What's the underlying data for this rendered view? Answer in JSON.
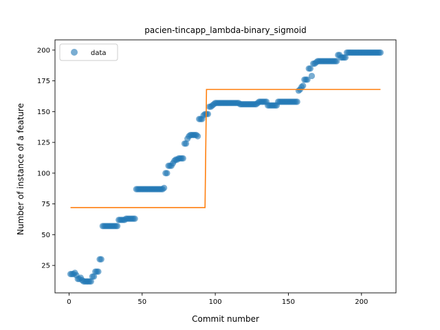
{
  "chart_data": {
    "type": "scatter",
    "title": "pacien-tincapp_lambda-binary_sigmoid",
    "xlabel": "Commit number",
    "ylabel": "Number of instance of a feature",
    "xlim": [
      -9.6,
      223.6
    ],
    "ylim": [
      2.7,
      208.3
    ],
    "xticks": [
      0,
      50,
      100,
      150,
      200
    ],
    "yticks": [
      25,
      50,
      75,
      100,
      125,
      150,
      175,
      200
    ],
    "grid": false,
    "legend": {
      "position": "top-left",
      "entries": [
        "data"
      ]
    },
    "colors": {
      "data": "#1f77b4",
      "fit": "#ff7f0e"
    },
    "series": [
      {
        "name": "data",
        "kind": "scatter",
        "points": [
          [
            1,
            18
          ],
          [
            2,
            18
          ],
          [
            3,
            18
          ],
          [
            4,
            19
          ],
          [
            5,
            17
          ],
          [
            6,
            14
          ],
          [
            7,
            14
          ],
          [
            8,
            15
          ],
          [
            9,
            13
          ],
          [
            10,
            12
          ],
          [
            11,
            12
          ],
          [
            12,
            12
          ],
          [
            13,
            12
          ],
          [
            14,
            12
          ],
          [
            15,
            12
          ],
          [
            16,
            16
          ],
          [
            17,
            16
          ],
          [
            18,
            20
          ],
          [
            19,
            20
          ],
          [
            20,
            20
          ],
          [
            21,
            30
          ],
          [
            22,
            30
          ],
          [
            23,
            57
          ],
          [
            24,
            57
          ],
          [
            25,
            57
          ],
          [
            26,
            57
          ],
          [
            27,
            57
          ],
          [
            28,
            57
          ],
          [
            29,
            57
          ],
          [
            30,
            57
          ],
          [
            31,
            57
          ],
          [
            32,
            57
          ],
          [
            33,
            57
          ],
          [
            34,
            62
          ],
          [
            35,
            62
          ],
          [
            36,
            62
          ],
          [
            37,
            62
          ],
          [
            38,
            62
          ],
          [
            39,
            63
          ],
          [
            40,
            63
          ],
          [
            41,
            63
          ],
          [
            42,
            63
          ],
          [
            43,
            63
          ],
          [
            44,
            63
          ],
          [
            45,
            63
          ],
          [
            46,
            87
          ],
          [
            47,
            87
          ],
          [
            48,
            87
          ],
          [
            49,
            87
          ],
          [
            50,
            87
          ],
          [
            51,
            87
          ],
          [
            52,
            87
          ],
          [
            53,
            87
          ],
          [
            54,
            87
          ],
          [
            55,
            87
          ],
          [
            56,
            87
          ],
          [
            57,
            87
          ],
          [
            58,
            87
          ],
          [
            59,
            87
          ],
          [
            60,
            87
          ],
          [
            61,
            87
          ],
          [
            62,
            87
          ],
          [
            63,
            87
          ],
          [
            64,
            87
          ],
          [
            65,
            88
          ],
          [
            66,
            100
          ],
          [
            67,
            100
          ],
          [
            68,
            106
          ],
          [
            69,
            106
          ],
          [
            70,
            106
          ],
          [
            71,
            108
          ],
          [
            72,
            110
          ],
          [
            73,
            111
          ],
          [
            74,
            111
          ],
          [
            75,
            112
          ],
          [
            76,
            112
          ],
          [
            77,
            112
          ],
          [
            78,
            112
          ],
          [
            79,
            124
          ],
          [
            80,
            124
          ],
          [
            81,
            128
          ],
          [
            82,
            130
          ],
          [
            83,
            131
          ],
          [
            84,
            131
          ],
          [
            85,
            131
          ],
          [
            86,
            131
          ],
          [
            87,
            131
          ],
          [
            88,
            130
          ],
          [
            89,
            144
          ],
          [
            90,
            144
          ],
          [
            91,
            144
          ],
          [
            92,
            147
          ],
          [
            93,
            148
          ],
          [
            94,
            148
          ],
          [
            95,
            148
          ],
          [
            96,
            154
          ],
          [
            97,
            154
          ],
          [
            98,
            155
          ],
          [
            99,
            156
          ],
          [
            100,
            157
          ],
          [
            101,
            157
          ],
          [
            102,
            157
          ],
          [
            103,
            157
          ],
          [
            104,
            157
          ],
          [
            105,
            157
          ],
          [
            106,
            157
          ],
          [
            107,
            157
          ],
          [
            108,
            157
          ],
          [
            109,
            157
          ],
          [
            110,
            157
          ],
          [
            111,
            157
          ],
          [
            112,
            157
          ],
          [
            113,
            157
          ],
          [
            114,
            157
          ],
          [
            115,
            157
          ],
          [
            116,
            157
          ],
          [
            117,
            156
          ],
          [
            118,
            156
          ],
          [
            119,
            156
          ],
          [
            120,
            156
          ],
          [
            121,
            156
          ],
          [
            122,
            156
          ],
          [
            123,
            156
          ],
          [
            124,
            156
          ],
          [
            125,
            156
          ],
          [
            126,
            156
          ],
          [
            127,
            156
          ],
          [
            128,
            156
          ],
          [
            129,
            157
          ],
          [
            130,
            158
          ],
          [
            131,
            158
          ],
          [
            132,
            158
          ],
          [
            133,
            158
          ],
          [
            134,
            158
          ],
          [
            135,
            158
          ],
          [
            136,
            155
          ],
          [
            137,
            155
          ],
          [
            138,
            155
          ],
          [
            139,
            155
          ],
          [
            140,
            155
          ],
          [
            141,
            155
          ],
          [
            142,
            155
          ],
          [
            143,
            158
          ],
          [
            144,
            158
          ],
          [
            145,
            158
          ],
          [
            146,
            158
          ],
          [
            147,
            158
          ],
          [
            148,
            158
          ],
          [
            149,
            158
          ],
          [
            150,
            158
          ],
          [
            151,
            158
          ],
          [
            152,
            158
          ],
          [
            153,
            158
          ],
          [
            154,
            158
          ],
          [
            155,
            158
          ],
          [
            156,
            158
          ],
          [
            157,
            167
          ],
          [
            158,
            168
          ],
          [
            159,
            170
          ],
          [
            160,
            171
          ],
          [
            161,
            176
          ],
          [
            162,
            176
          ],
          [
            163,
            176
          ],
          [
            164,
            185
          ],
          [
            165,
            185
          ],
          [
            166,
            179
          ],
          [
            167,
            189
          ],
          [
            168,
            189
          ],
          [
            169,
            190
          ],
          [
            170,
            191
          ],
          [
            171,
            191
          ],
          [
            172,
            191
          ],
          [
            173,
            191
          ],
          [
            174,
            191
          ],
          [
            175,
            191
          ],
          [
            176,
            191
          ],
          [
            177,
            191
          ],
          [
            178,
            191
          ],
          [
            179,
            191
          ],
          [
            180,
            191
          ],
          [
            181,
            191
          ],
          [
            182,
            191
          ],
          [
            183,
            191
          ],
          [
            184,
            196
          ],
          [
            185,
            196
          ],
          [
            186,
            194
          ],
          [
            187,
            194
          ],
          [
            188,
            194
          ],
          [
            189,
            194
          ],
          [
            190,
            198
          ],
          [
            191,
            198
          ],
          [
            192,
            198
          ],
          [
            193,
            198
          ],
          [
            194,
            198
          ],
          [
            195,
            198
          ],
          [
            196,
            198
          ],
          [
            197,
            198
          ],
          [
            198,
            198
          ],
          [
            199,
            198
          ],
          [
            200,
            198
          ],
          [
            201,
            198
          ],
          [
            202,
            198
          ],
          [
            203,
            198
          ],
          [
            204,
            198
          ],
          [
            205,
            198
          ],
          [
            206,
            198
          ],
          [
            207,
            198
          ],
          [
            208,
            198
          ],
          [
            209,
            198
          ],
          [
            210,
            198
          ],
          [
            211,
            198
          ],
          [
            212,
            198
          ],
          [
            213,
            198
          ]
        ]
      },
      {
        "name": "",
        "kind": "line",
        "points": [
          [
            1,
            72
          ],
          [
            93,
            72
          ],
          [
            94,
            168
          ],
          [
            213,
            168
          ]
        ]
      }
    ]
  }
}
